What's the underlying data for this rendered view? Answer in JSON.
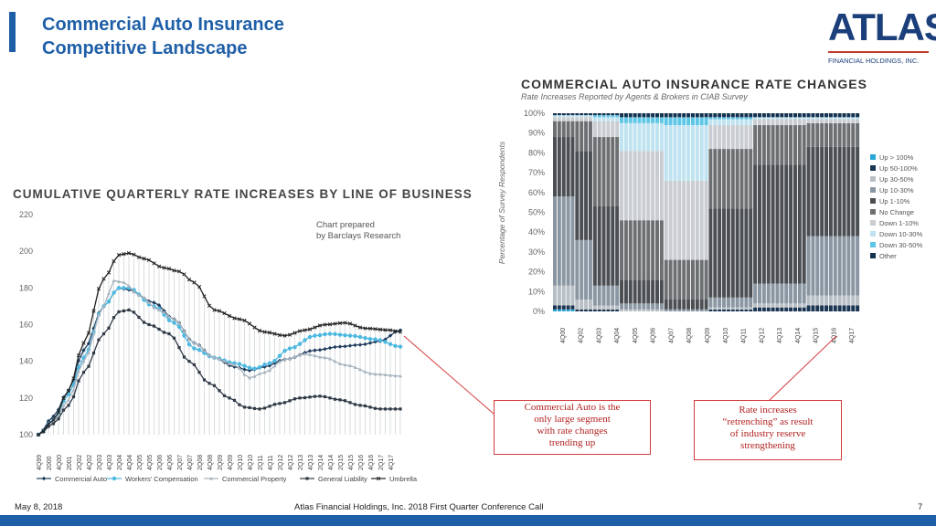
{
  "header": {
    "title_line1": "Commercial Auto Insurance",
    "title_line2": "Competitive Landscape",
    "accent_color": "#1f5fa8"
  },
  "logo": {
    "word": "ATLAS",
    "sub": "FINANCIAL HOLDINGS, INC."
  },
  "callouts": {
    "left": [
      "Commercial Auto is the",
      "only large segment",
      "with rate changes",
      "trending up"
    ],
    "right": [
      "Rate increases",
      "“retrenching” as result",
      "of industry reserve",
      "strengthening"
    ]
  },
  "footer": {
    "date": "May 8, 2018",
    "center": "Atlas Financial Holdings, Inc. 2018 First Quarter Conference Call",
    "page": "7"
  },
  "chart_data": [
    {
      "type": "line",
      "title": "CUMULATIVE QUARTERLY RATE INCREASES BY LINE OF BUSINESS",
      "annotation": "Chart prepared by Barclays Research",
      "annotation_lines": [
        "Chart prepared",
        "by Barclays Research"
      ],
      "xlabel": "",
      "ylabel": "",
      "ylim": [
        100,
        220
      ],
      "y_ticks": [
        100,
        120,
        140,
        160,
        180,
        200,
        220
      ],
      "x_tick_labels": [
        "4Q99",
        "2000",
        "4Q00",
        "2001",
        "2Q02",
        "4Q02",
        "2Q03",
        "4Q03",
        "2Q04",
        "4Q04",
        "2Q05",
        "4Q05",
        "2Q06",
        "4Q06",
        "2Q07",
        "4Q07",
        "2Q08",
        "4Q08",
        "2Q09",
        "4Q09",
        "2Q10",
        "4Q10",
        "2Q11",
        "4Q11",
        "2Q12",
        "4Q12",
        "2Q13",
        "4Q13",
        "2Q14",
        "4Q14",
        "2Q15",
        "4Q15",
        "2Q16",
        "4Q16",
        "2Q17",
        "4Q17"
      ],
      "x_count": 73,
      "series": [
        {
          "name": "Commercial Auto",
          "color": "#1f3b5c",
          "marker": "diamond",
          "knots": [
            [
              0,
              100
            ],
            [
              3,
              110
            ],
            [
              6,
              124
            ],
            [
              9,
              146
            ],
            [
              13,
              170
            ],
            [
              16,
              180
            ],
            [
              18,
              179
            ],
            [
              23,
              172
            ],
            [
              27,
              163
            ],
            [
              31,
              150
            ],
            [
              35,
              142
            ],
            [
              39,
              137
            ],
            [
              42,
              135
            ],
            [
              45,
              137
            ],
            [
              49,
              141
            ],
            [
              55,
              146
            ],
            [
              60,
              148
            ],
            [
              64,
              149
            ],
            [
              68,
              151
            ],
            [
              72,
              157
            ]
          ]
        },
        {
          "name": "Workers' Compensation",
          "color": "#4db8e0",
          "marker": "circle",
          "knots": [
            [
              0,
              100
            ],
            [
              3,
              108
            ],
            [
              6,
              122
            ],
            [
              9,
              142
            ],
            [
              13,
              170
            ],
            [
              16,
              180
            ],
            [
              18,
              180
            ],
            [
              23,
              170
            ],
            [
              27,
              161
            ],
            [
              31,
              147
            ],
            [
              35,
              142
            ],
            [
              39,
              139
            ],
            [
              43,
              136
            ],
            [
              46,
              139
            ],
            [
              50,
              147
            ],
            [
              55,
              154
            ],
            [
              58,
              155
            ],
            [
              62,
              154
            ],
            [
              67,
              152
            ],
            [
              72,
              148
            ]
          ]
        },
        {
          "name": "Commercial Property",
          "color": "#a7b4bf",
          "marker": "triangle",
          "knots": [
            [
              0,
              100
            ],
            [
              3,
              107
            ],
            [
              6,
              119
            ],
            [
              9,
              140
            ],
            [
              13,
              170
            ],
            [
              15,
              184
            ],
            [
              17,
              183
            ],
            [
              20,
              176
            ],
            [
              24,
              168
            ],
            [
              27,
              163
            ],
            [
              31,
              150
            ],
            [
              35,
              142
            ],
            [
              39,
              138
            ],
            [
              42,
              131
            ],
            [
              45,
              134
            ],
            [
              49,
              141
            ],
            [
              53,
              144
            ],
            [
              57,
              142
            ],
            [
              61,
              138
            ],
            [
              67,
              133
            ],
            [
              72,
              132
            ]
          ]
        },
        {
          "name": "General Liability",
          "color": "#2f3a46",
          "marker": "square",
          "knots": [
            [
              0,
              100
            ],
            [
              3,
              106
            ],
            [
              6,
              116
            ],
            [
              9,
              134
            ],
            [
              13,
              155
            ],
            [
              16,
              167
            ],
            [
              18,
              168
            ],
            [
              22,
              160
            ],
            [
              26,
              155
            ],
            [
              30,
              140
            ],
            [
              34,
              128
            ],
            [
              38,
              120
            ],
            [
              41,
              115
            ],
            [
              44,
              114
            ],
            [
              48,
              117
            ],
            [
              52,
              120
            ],
            [
              56,
              121
            ],
            [
              60,
              119
            ],
            [
              64,
              116
            ],
            [
              68,
              114
            ],
            [
              72,
              114
            ]
          ]
        },
        {
          "name": "Umbrella",
          "color": "#222222",
          "marker": "cross",
          "knots": [
            [
              0,
              100
            ],
            [
              3,
              108
            ],
            [
              6,
              124
            ],
            [
              9,
              150
            ],
            [
              13,
              185
            ],
            [
              16,
              198
            ],
            [
              18,
              199
            ],
            [
              21,
              196
            ],
            [
              25,
              191
            ],
            [
              28,
              189
            ],
            [
              31,
              183
            ],
            [
              35,
              168
            ],
            [
              40,
              163
            ],
            [
              45,
              156
            ],
            [
              49,
              154
            ],
            [
              53,
              157
            ],
            [
              57,
              160
            ],
            [
              61,
              161
            ],
            [
              65,
              158
            ],
            [
              70,
              157
            ],
            [
              72,
              156
            ]
          ]
        }
      ]
    },
    {
      "type": "bar",
      "stacked": true,
      "title": "COMMERCIAL AUTO INSURANCE RATE CHANGES",
      "subtitle": "Rate Increases Reported by Agents & Brokers in CIAB Survey",
      "ylabel": "Percentage of Survey Respondents",
      "ylim": [
        0,
        100
      ],
      "y_ticks": [
        "0%",
        "10%",
        "20%",
        "30%",
        "40%",
        "50%",
        "60%",
        "70%",
        "80%",
        "90%",
        "100%"
      ],
      "x_tick_labels": [
        "4Q00",
        "4Q02",
        "4Q03",
        "4Q04",
        "4Q05",
        "4Q06",
        "4Q07",
        "4Q08",
        "4Q09",
        "4Q10",
        "4Q11",
        "4Q12",
        "4Q13",
        "4Q14",
        "4Q15",
        "4Q16",
        "4Q17"
      ],
      "categories_count": 69,
      "legend_position": "right",
      "legend": [
        {
          "name": "Up > 100%",
          "color": "#2aa6d6"
        },
        {
          "name": "Up 50-100%",
          "color": "#1b3553"
        },
        {
          "name": "Up 30-50%",
          "color": "#b8bfc5"
        },
        {
          "name": "Up 10-30%",
          "color": "#8a97a3"
        },
        {
          "name": "Up 1-10%",
          "color": "#4b4f53"
        },
        {
          "name": "No Change",
          "color": "#6d7073"
        },
        {
          "name": "Down 1-10%",
          "color": "#c9cdd1"
        },
        {
          "name": "Down 10-30%",
          "color": "#bfe3f0"
        },
        {
          "name": "Down 30-50%",
          "color": "#5ec6e6"
        },
        {
          "name": "Other",
          "color": "#13324f"
        }
      ],
      "phases": [
        {
          "range": [
            0,
            4
          ],
          "values": {
            "Up > 100%": 1,
            "Up 50-100%": 2,
            "Up 30-50%": 10,
            "Up 10-30%": 45,
            "Up 1-10%": 30,
            "No Change": 8,
            "Down 1-10%": 2,
            "Down 10-30%": 1,
            "Down 30-50%": 0,
            "Other": 1
          }
        },
        {
          "range": [
            5,
            8
          ],
          "values": {
            "Up > 100%": 0,
            "Up 50-100%": 1,
            "Up 30-50%": 5,
            "Up 10-30%": 30,
            "Up 1-10%": 45,
            "No Change": 15,
            "Down 1-10%": 2,
            "Down 10-30%": 1,
            "Down 30-50%": 0,
            "Other": 1
          }
        },
        {
          "range": [
            9,
            14
          ],
          "values": {
            "Up > 100%": 0,
            "Up 50-100%": 1,
            "Up 30-50%": 2,
            "Up 10-30%": 10,
            "Up 1-10%": 40,
            "No Change": 35,
            "Down 1-10%": 8,
            "Down 10-30%": 2,
            "Down 30-50%": 1,
            "Other": 1
          }
        },
        {
          "range": [
            15,
            24
          ],
          "values": {
            "Up > 100%": 0,
            "Up 50-100%": 0,
            "Up 30-50%": 1,
            "Up 10-30%": 3,
            "Up 1-10%": 12,
            "No Change": 30,
            "Down 1-10%": 35,
            "Down 10-30%": 14,
            "Down 30-50%": 3,
            "Other": 2
          }
        },
        {
          "range": [
            25,
            34
          ],
          "values": {
            "Up > 100%": 0,
            "Up 50-100%": 0,
            "Up 30-50%": 0,
            "Up 10-30%": 1,
            "Up 1-10%": 5,
            "No Change": 20,
            "Down 1-10%": 40,
            "Down 10-30%": 28,
            "Down 30-50%": 4,
            "Other": 2
          }
        },
        {
          "range": [
            35,
            44
          ],
          "values": {
            "Up > 100%": 0,
            "Up 50-100%": 1,
            "Up 30-50%": 1,
            "Up 10-30%": 5,
            "Up 1-10%": 45,
            "No Change": 30,
            "Down 1-10%": 12,
            "Down 10-30%": 3,
            "Down 30-50%": 1,
            "Other": 2
          }
        },
        {
          "range": [
            45,
            56
          ],
          "values": {
            "Up > 100%": 0,
            "Up 50-100%": 2,
            "Up 30-50%": 2,
            "Up 10-30%": 10,
            "Up 1-10%": 60,
            "No Change": 20,
            "Down 1-10%": 3,
            "Down 10-30%": 1,
            "Down 30-50%": 0,
            "Other": 2
          }
        },
        {
          "range": [
            57,
            68
          ],
          "values": {
            "Up > 100%": 0,
            "Up 50-100%": 3,
            "Up 30-50%": 5,
            "Up 10-30%": 30,
            "Up 1-10%": 45,
            "No Change": 12,
            "Down 1-10%": 2,
            "Down 10-30%": 1,
            "Down 30-50%": 0,
            "Other": 2
          }
        }
      ]
    }
  ]
}
